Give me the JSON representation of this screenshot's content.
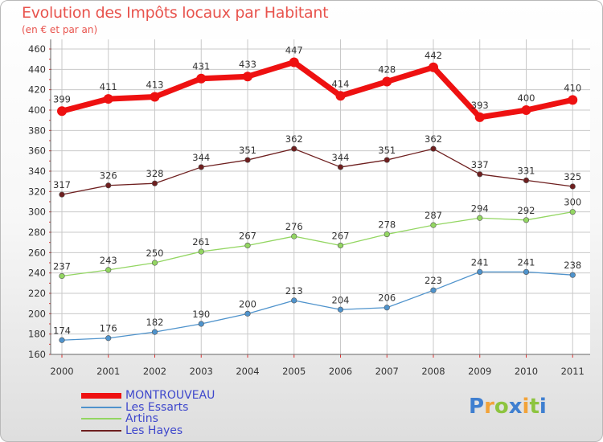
{
  "chart_data": {
    "type": "line",
    "title": "Evolution des Impôts locaux par Habitant",
    "subtitle": "(en € et par an)",
    "categories": [
      "2000",
      "2001",
      "2002",
      "2003",
      "2004",
      "2005",
      "2006",
      "2007",
      "2008",
      "2009",
      "2010",
      "2011"
    ],
    "y_ticks": [
      160,
      180,
      200,
      220,
      240,
      260,
      280,
      300,
      320,
      340,
      360,
      380,
      400,
      420,
      440,
      460
    ],
    "ylim": [
      160,
      460
    ],
    "grid": true,
    "legend_position": "bottom-left",
    "series": [
      {
        "name": "MONTROUVEAU",
        "color": "#ee1111",
        "values": [
          399,
          411,
          413,
          431,
          433,
          447,
          414,
          428,
          442,
          393,
          400,
          410
        ]
      },
      {
        "name": "Les Essarts",
        "color": "#4f93cc",
        "values": [
          174,
          176,
          182,
          190,
          200,
          213,
          204,
          206,
          223,
          241,
          241,
          238
        ]
      },
      {
        "name": "Artins",
        "color": "#93d662",
        "values": [
          237,
          243,
          250,
          261,
          267,
          276,
          267,
          278,
          287,
          294,
          292,
          300
        ]
      },
      {
        "name": "Les Hayes",
        "color": "#6e1f1f",
        "values": [
          317,
          326,
          328,
          344,
          351,
          362,
          344,
          351,
          362,
          337,
          331,
          325
        ]
      }
    ]
  },
  "logo": {
    "letters": [
      "P",
      "r",
      "o",
      "x",
      "i",
      "t",
      "i"
    ],
    "colors": [
      "#3f7fd0",
      "#f2a33a",
      "#8dc43f",
      "#3f7fd0",
      "#f2a33a",
      "#8dc43f",
      "#3f7fd0"
    ]
  }
}
